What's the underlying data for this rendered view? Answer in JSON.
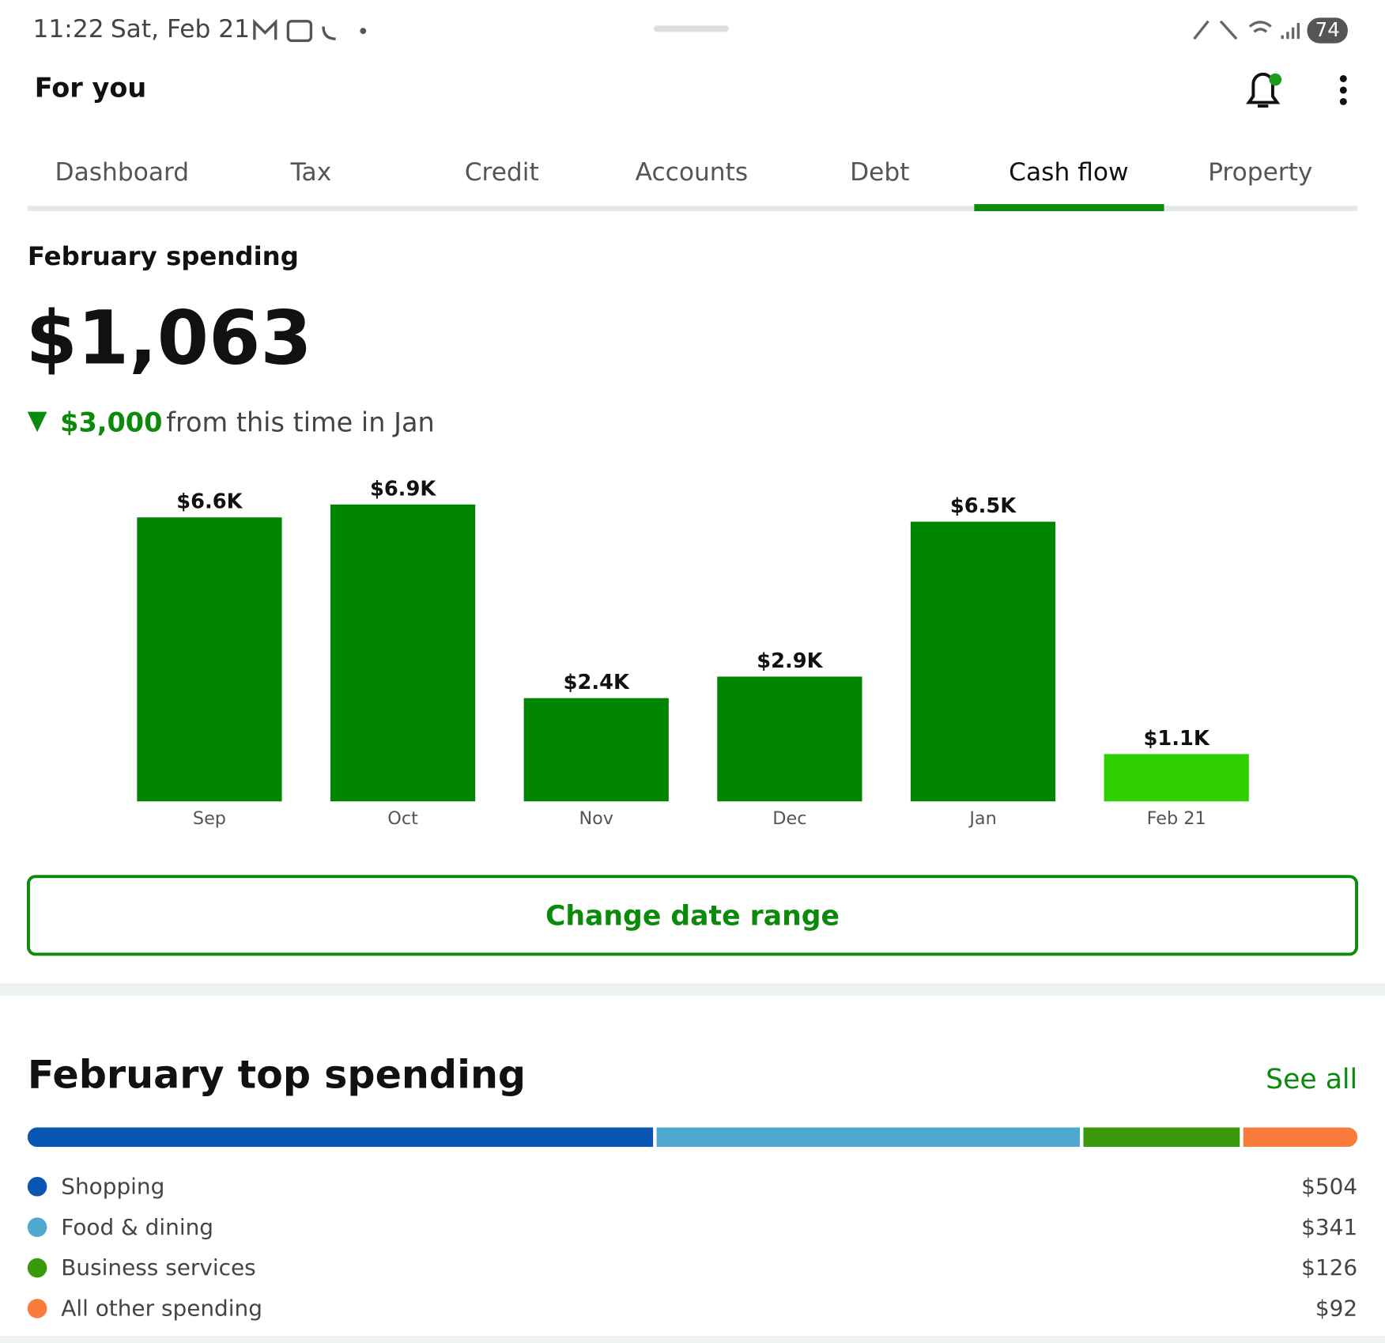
{
  "status_bar": {
    "time": "11:22",
    "date": "Sat, Feb 21",
    "battery": "74"
  },
  "header": {
    "title": "For you"
  },
  "tabs": {
    "items": [
      "Dashboard",
      "Tax",
      "Credit",
      "Accounts",
      "Debt",
      "Cash flow",
      "Property"
    ],
    "active": 5
  },
  "spending": {
    "title": "February spending",
    "total": "$1,063",
    "change_amount": "$3,000",
    "change_text": "from this time in Jan"
  },
  "chart_data": [
    {
      "type": "bar",
      "categories": [
        "Sep",
        "Oct",
        "Nov",
        "Dec",
        "Jan",
        "Feb 21"
      ],
      "values": [
        6600,
        6900,
        2400,
        2900,
        6500,
        1100
      ],
      "value_labels": [
        "$6.6K",
        "$6.9K",
        "$2.4K",
        "$2.9K",
        "$6.5K",
        "$1.1K"
      ],
      "colors": [
        "#008500",
        "#008500",
        "#008500",
        "#008500",
        "#008500",
        "#2ed000"
      ]
    },
    {
      "type": "stacked-bar",
      "title": "February top spending",
      "categories": [
        "Shopping",
        "Food & dining",
        "Business services",
        "All other spending"
      ],
      "values": [
        504,
        341,
        126,
        92
      ],
      "value_labels": [
        "$504",
        "$341",
        "$126",
        "$92"
      ],
      "colors": [
        "#0b56b3",
        "#4fa8cf",
        "#3a9a0c",
        "#f97c3c"
      ]
    }
  ],
  "button": {
    "label": "Change date range"
  },
  "see_all": "See all"
}
